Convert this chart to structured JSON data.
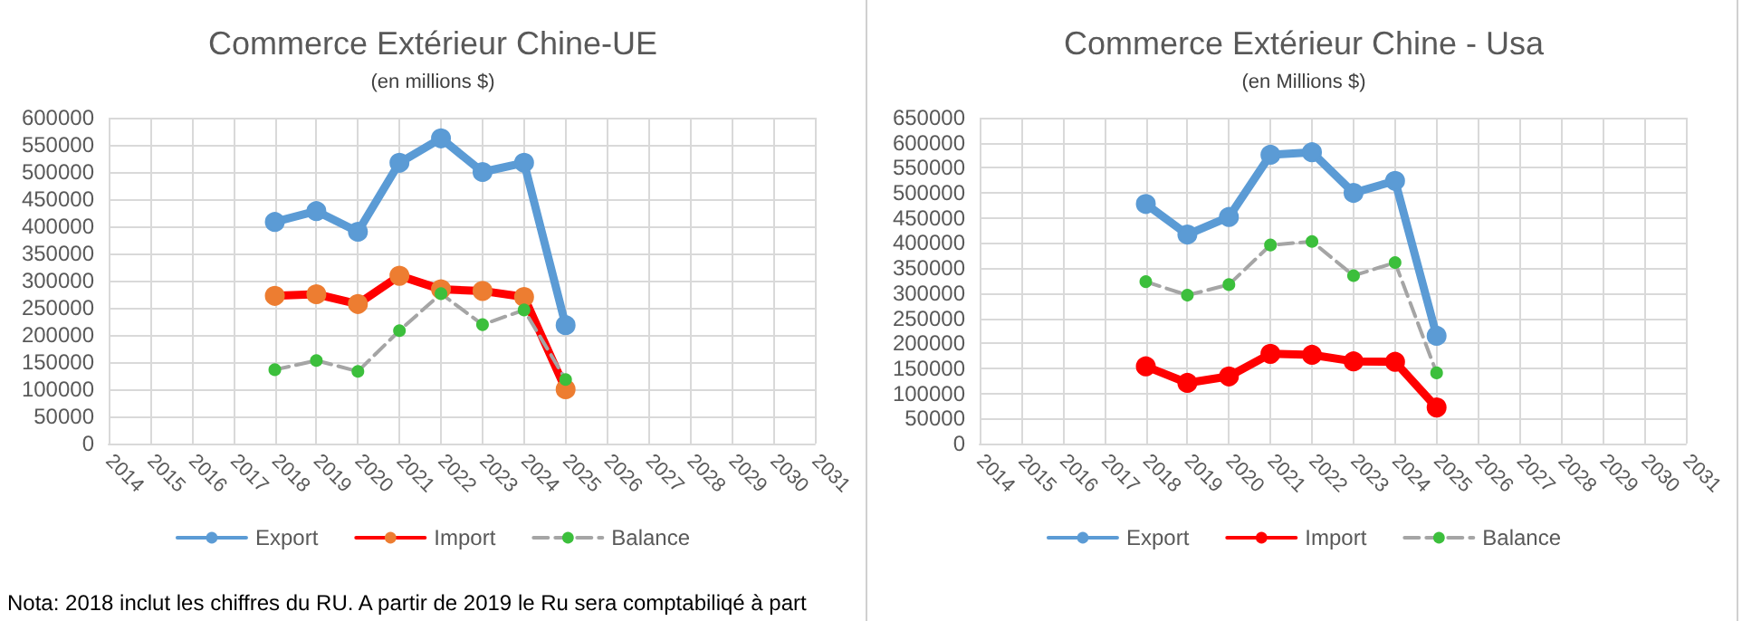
{
  "chart_data": [
    {
      "type": "line",
      "title": "Commerce Extérieur Chine-UE",
      "subtitle": "(en millions $)",
      "categories": [
        "2014",
        "2015",
        "2016",
        "2017",
        "2018",
        "2019",
        "2020",
        "2021",
        "2022",
        "2023",
        "2024",
        "2025",
        "2026",
        "2027",
        "2028",
        "2029",
        "2030",
        "2031"
      ],
      "series": [
        {
          "name": "Export",
          "color": "#5b9bd5",
          "values": [
            null,
            null,
            null,
            null,
            408000,
            428000,
            390000,
            517000,
            562000,
            500000,
            517000,
            218000,
            null,
            null,
            null,
            null,
            null,
            null
          ]
        },
        {
          "name": "Import",
          "color": "#ff0000",
          "colors": [
            null,
            null,
            null,
            null,
            "#ed7d31",
            "#ed7d31",
            "#ed7d31",
            "#ed7d31",
            "#ed7d31",
            "#ed7d31",
            "#ed7d31",
            "#ed7d31",
            null,
            null,
            null,
            null,
            null,
            null
          ],
          "values": [
            null,
            null,
            null,
            null,
            272000,
            275000,
            257000,
            309000,
            284000,
            281000,
            270000,
            100000,
            null,
            null,
            null,
            null,
            null,
            null
          ]
        },
        {
          "name": "Balance",
          "color": "#a5a5a5",
          "line_style": "dashed",
          "colors": [
            null,
            null,
            null,
            null,
            "#3cbf3c",
            "#3cbf3c",
            "#3cbf3c",
            "#3cbf3c",
            "#3cbf3c",
            "#3cbf3c",
            "#3cbf3c",
            "#3cbf3c",
            null,
            null,
            null,
            null,
            null,
            null
          ],
          "values": [
            null,
            null,
            null,
            null,
            136000,
            153000,
            133000,
            208000,
            276000,
            219000,
            246000,
            118000,
            null,
            null,
            null,
            null,
            null,
            null
          ]
        }
      ],
      "ylim": [
        0,
        600000
      ],
      "yticks": [
        0,
        50000,
        100000,
        150000,
        200000,
        250000,
        300000,
        350000,
        400000,
        450000,
        500000,
        550000,
        600000
      ],
      "grid": true,
      "legend": "bottom",
      "marker": "circle",
      "annotations": [
        "Nota: 2018 inclut les chiffres du RU. A partir de 2019 le Ru sera comptabiliqé à part"
      ]
    },
    {
      "type": "line",
      "title": "Commerce Extérieur Chine - Usa",
      "subtitle": "(en Millions $)",
      "categories": [
        "2014",
        "2015",
        "2016",
        "2017",
        "2018",
        "2019",
        "2020",
        "2021",
        "2022",
        "2023",
        "2024",
        "2025",
        "2026",
        "2027",
        "2028",
        "2029",
        "2030",
        "2031"
      ],
      "series": [
        {
          "name": "Export",
          "color": "#5b9bd5",
          "values": [
            null,
            null,
            null,
            null,
            478000,
            417000,
            452000,
            576000,
            581000,
            500000,
            524000,
            215000,
            null,
            null,
            null,
            null,
            null,
            null
          ]
        },
        {
          "name": "Import",
          "color": "#ff0000",
          "values": [
            null,
            null,
            null,
            null,
            154000,
            121000,
            134000,
            179000,
            177000,
            164000,
            163000,
            72000,
            null,
            null,
            null,
            null,
            null,
            null
          ]
        },
        {
          "name": "Balance",
          "color": "#a5a5a5",
          "line_style": "dashed",
          "colors": [
            null,
            null,
            null,
            null,
            "#3cbf3c",
            "#3cbf3c",
            "#3cbf3c",
            "#3cbf3c",
            "#3cbf3c",
            "#3cbf3c",
            "#3cbf3c",
            "#3cbf3c",
            null,
            null,
            null,
            null,
            null,
            null
          ],
          "values": [
            null,
            null,
            null,
            null,
            323000,
            296000,
            317000,
            396000,
            403000,
            335000,
            361000,
            141000,
            null,
            null,
            null,
            null,
            null,
            null
          ]
        }
      ],
      "ylim": [
        0,
        650000
      ],
      "yticks": [
        0,
        50000,
        100000,
        150000,
        200000,
        250000,
        300000,
        350000,
        400000,
        450000,
        500000,
        550000,
        600000,
        650000
      ],
      "grid": true,
      "legend": "bottom",
      "marker": "circle"
    }
  ]
}
